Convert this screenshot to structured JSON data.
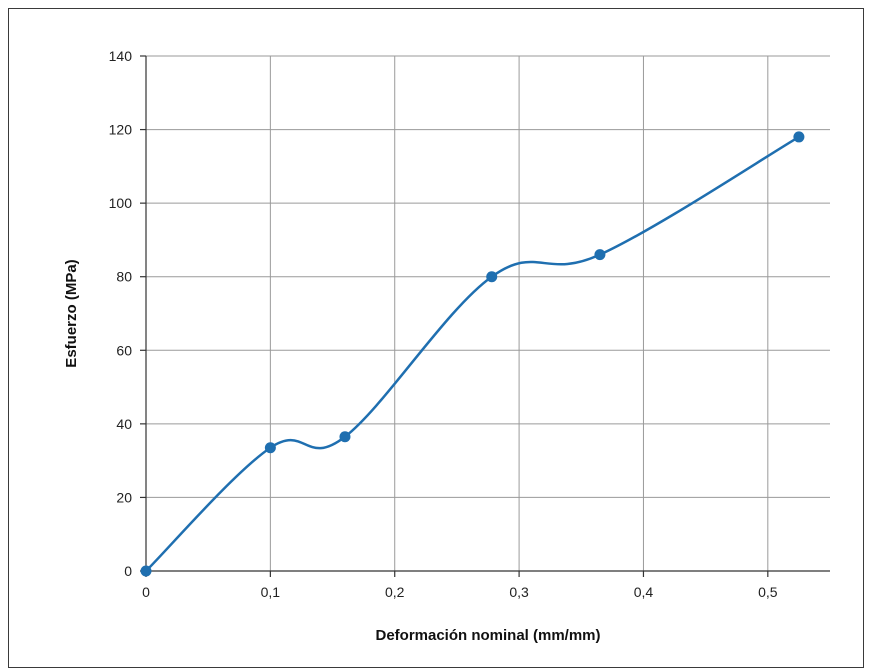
{
  "chart_data": {
    "type": "line",
    "title": "",
    "xlabel": "Deformación nominal (mm/mm)",
    "ylabel": "Esfuerzo (MPa)",
    "xlim": [
      0,
      0.55
    ],
    "ylim": [
      0,
      140
    ],
    "x_ticks": [
      "0",
      "0,1",
      "0,2",
      "0,3",
      "0,4",
      "0,5"
    ],
    "x_tick_values": [
      0,
      0.1,
      0.2,
      0.3,
      0.4,
      0.5
    ],
    "y_ticks": [
      "0",
      "20",
      "40",
      "60",
      "80",
      "100",
      "120",
      "140"
    ],
    "y_tick_values": [
      0,
      20,
      40,
      60,
      80,
      100,
      120,
      140
    ],
    "grid": true,
    "line_color": "#1f6fb0",
    "marker_color": "#1f6fb0",
    "series": [
      {
        "x": [
          0,
          0.1,
          0.16,
          0.278,
          0.365,
          0.525
        ],
        "y": [
          0,
          33.5,
          36.5,
          80,
          86,
          118
        ]
      }
    ]
  }
}
